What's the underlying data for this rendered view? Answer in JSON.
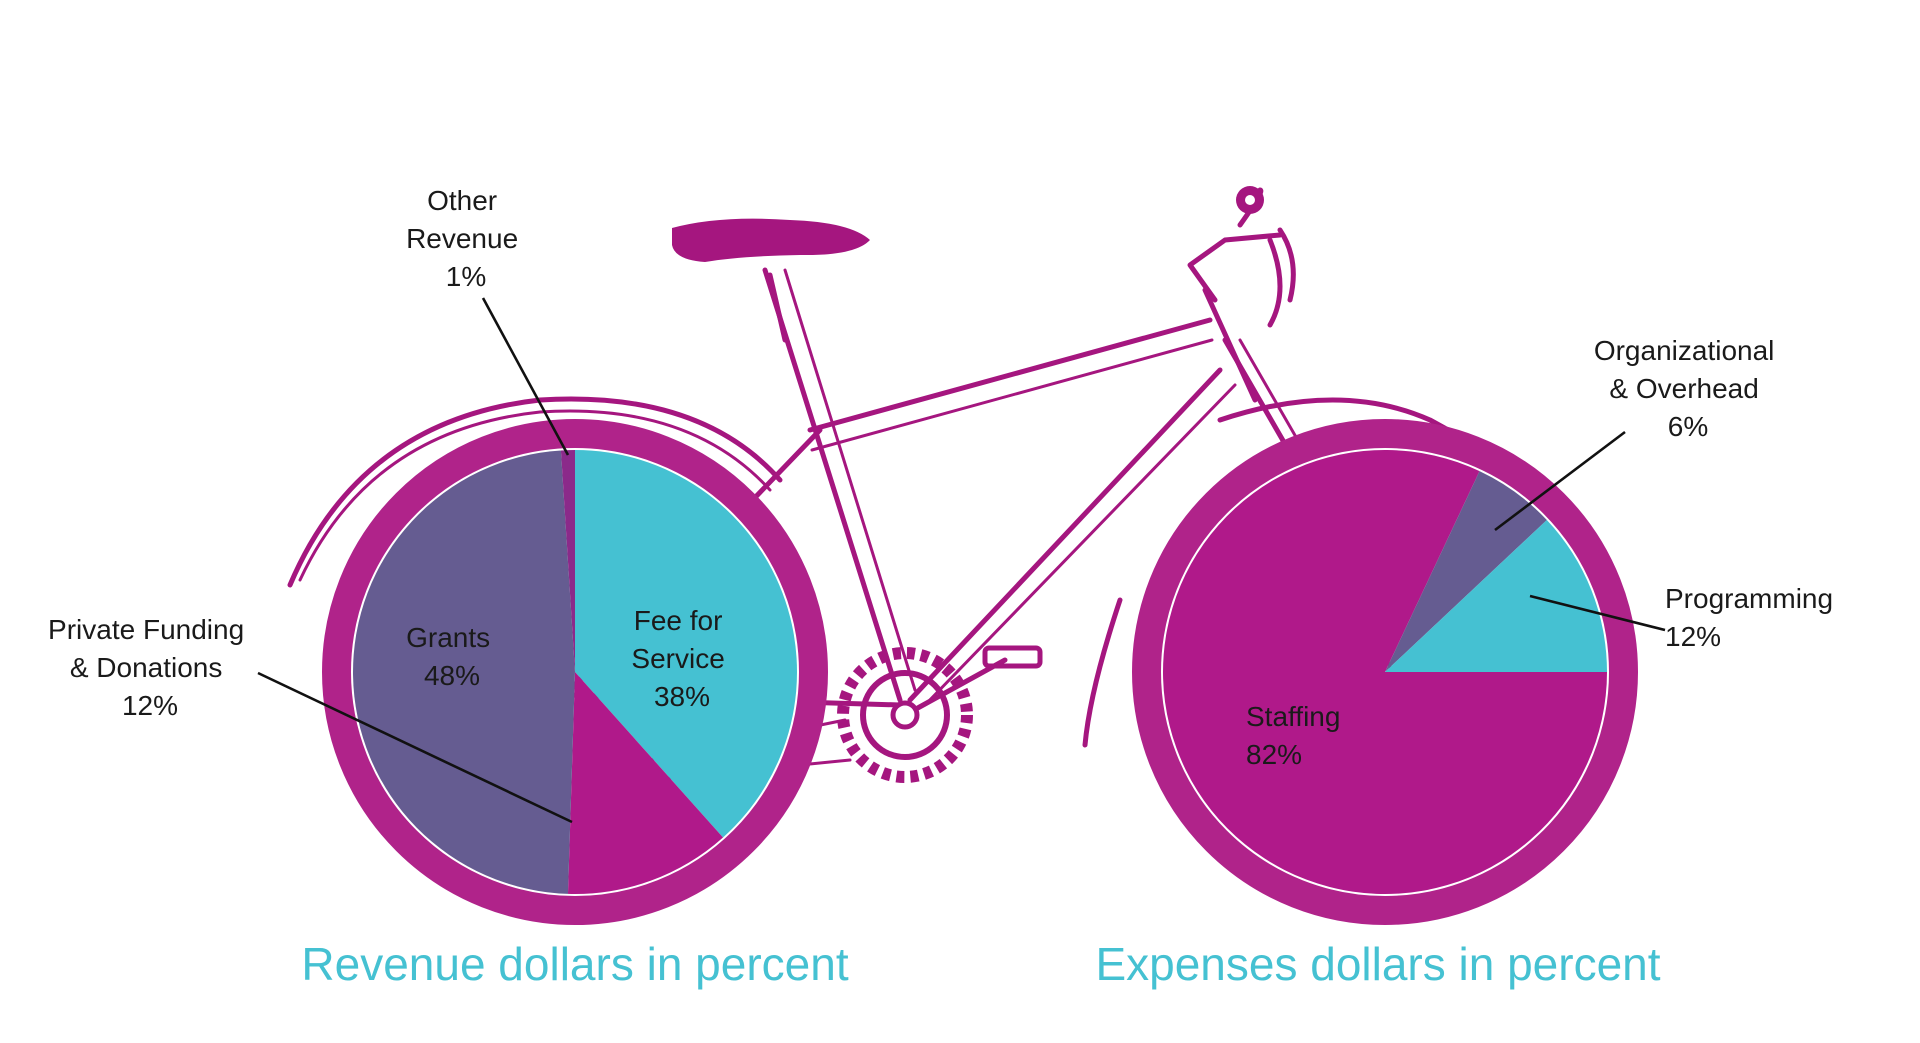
{
  "colors": {
    "bike": "#a5167f",
    "tire": "#b0238a",
    "title": "#45c1d2"
  },
  "chart_data": [
    {
      "type": "pie",
      "title": "Revenue dollars in percent",
      "slices": [
        {
          "label_lines": [
            "Fee for",
            "Service"
          ],
          "pct_text": "38%",
          "value": 38,
          "color": "#45c1d2"
        },
        {
          "label_lines": [
            "Private Funding",
            "& Donations"
          ],
          "pct_text": "12%",
          "value": 12,
          "color": "#b0198a"
        },
        {
          "label_lines": [
            "Grants"
          ],
          "pct_text": "48%",
          "value": 48,
          "color": "#655c91"
        },
        {
          "label_lines": [
            "Other",
            "Revenue"
          ],
          "pct_text": "1%",
          "value": 1,
          "color": "#8b2a8a"
        }
      ]
    },
    {
      "type": "pie",
      "title": "Expenses dollars in percent",
      "slices": [
        {
          "label_lines": [
            "Programming"
          ],
          "pct_text": "12%",
          "value": 12,
          "color": "#45c1d2"
        },
        {
          "label_lines": [
            "Staffing"
          ],
          "pct_text": "82%",
          "value": 82,
          "color": "#b0198a"
        },
        {
          "label_lines": [
            "Organizational",
            "& Overhead"
          ],
          "pct_text": "6%",
          "value": 6,
          "color": "#655c91"
        }
      ]
    }
  ]
}
